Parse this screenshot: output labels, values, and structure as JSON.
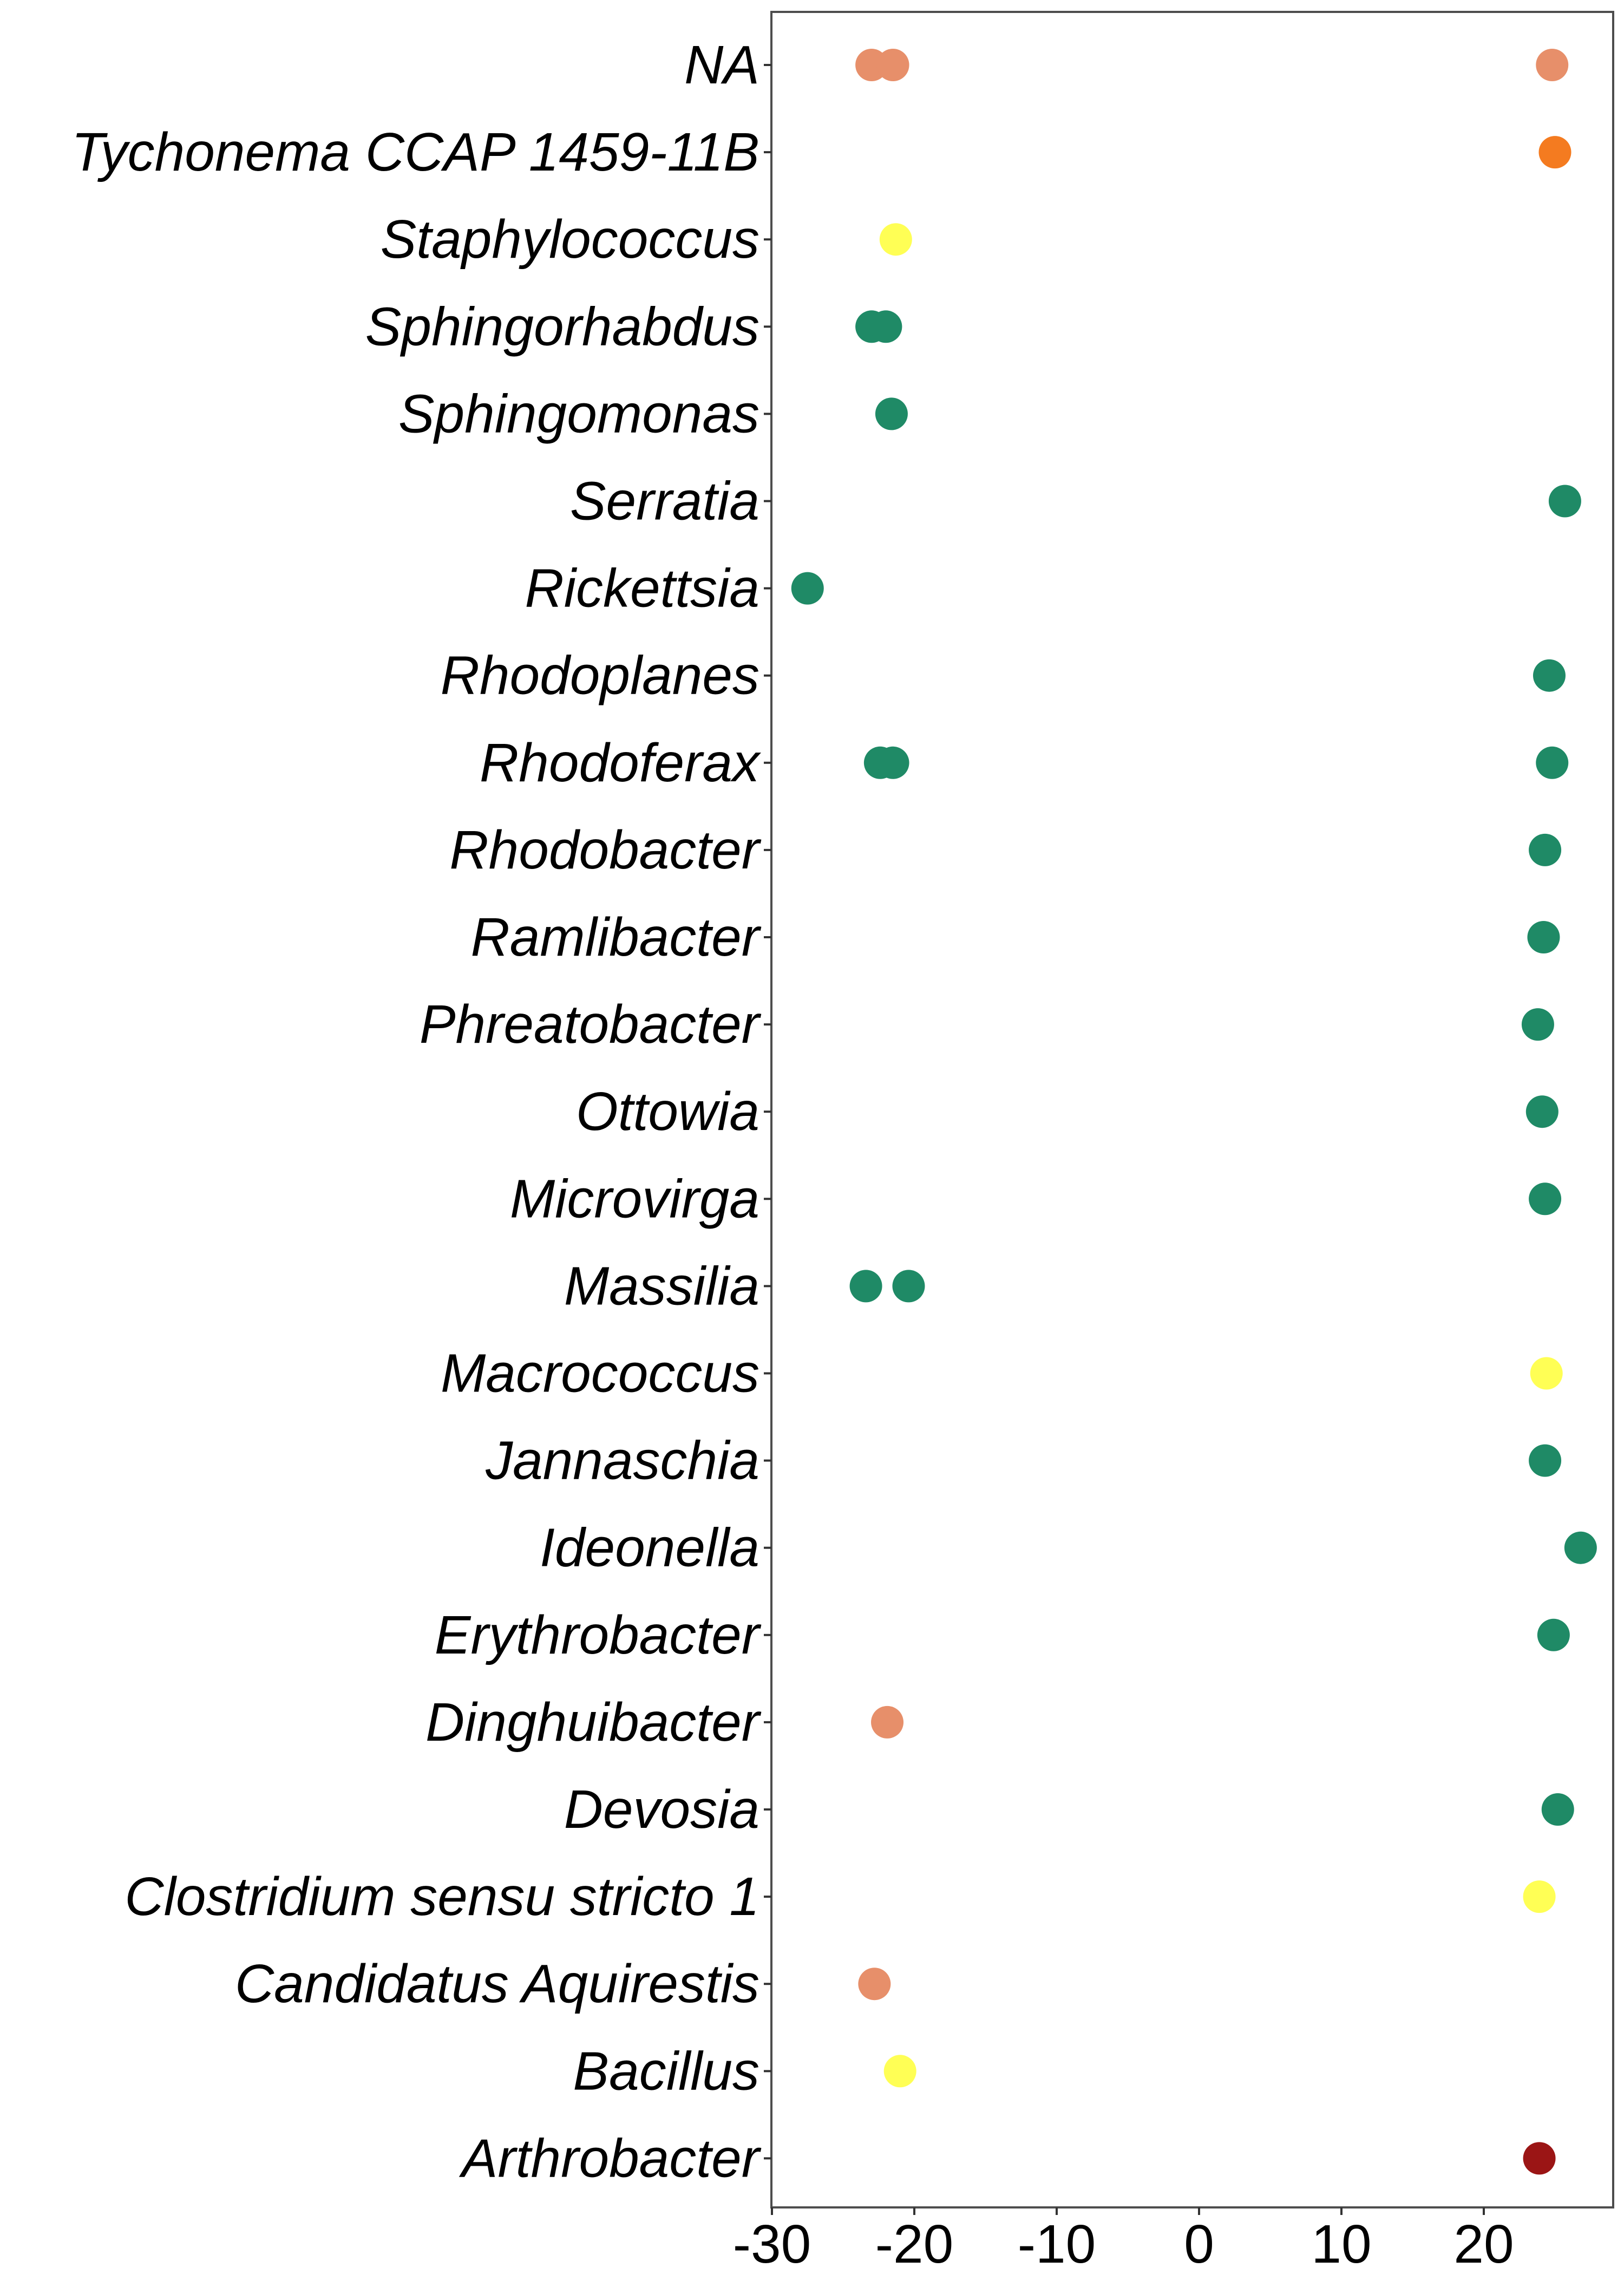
{
  "chart_data": {
    "type": "scatter",
    "title": "",
    "xlabel": "",
    "ylabel": "",
    "xlim": [
      -30.2,
      29
    ],
    "xticks": [
      -30,
      -20,
      -10,
      0,
      10,
      20
    ],
    "xtick_labels": [
      "-30",
      "-20",
      "-10",
      "0",
      "10",
      "20"
    ],
    "grid": false,
    "legend": "none",
    "categories": [
      "NA",
      "Tychonema CCAP 1459-11B",
      "Staphylococcus",
      "Sphingorhabdus",
      "Sphingomonas",
      "Serratia",
      "Rickettsia",
      "Rhodoplanes",
      "Rhodoferax",
      "Rhodobacter",
      "Ramlibacter",
      "Phreatobacter",
      "Ottowia",
      "Microvirga",
      "Massilia",
      "Macrococcus",
      "Jannaschia",
      "Ideonella",
      "Erythrobacter",
      "Dinghuibacter",
      "Devosia",
      "Clostridium sensu stricto 1",
      "Candidatus Aquirestis",
      "Bacillus",
      "Arthrobacter"
    ],
    "points": [
      {
        "y": "NA",
        "x": -23.0,
        "color": "#E78F6A"
      },
      {
        "y": "NA",
        "x": -21.5,
        "color": "#E78F6A"
      },
      {
        "y": "NA",
        "x": 24.8,
        "color": "#E78F6A"
      },
      {
        "y": "Tychonema CCAP 1459-11B",
        "x": 25.0,
        "color": "#F47B20"
      },
      {
        "y": "Staphylococcus",
        "x": -21.3,
        "color": "#FFFF55"
      },
      {
        "y": "Sphingorhabdus",
        "x": -23.0,
        "color": "#1F8A66"
      },
      {
        "y": "Sphingorhabdus",
        "x": -22.0,
        "color": "#1F8A66"
      },
      {
        "y": "Sphingomonas",
        "x": -21.6,
        "color": "#1F8A66"
      },
      {
        "y": "Serratia",
        "x": 25.7,
        "color": "#1F8A66"
      },
      {
        "y": "Rickettsia",
        "x": -27.5,
        "color": "#1F8A66"
      },
      {
        "y": "Rhodoplanes",
        "x": 24.6,
        "color": "#1F8A66"
      },
      {
        "y": "Rhodoferax",
        "x": -22.4,
        "color": "#1F8A66"
      },
      {
        "y": "Rhodoferax",
        "x": -21.5,
        "color": "#1F8A66"
      },
      {
        "y": "Rhodoferax",
        "x": 24.8,
        "color": "#1F8A66"
      },
      {
        "y": "Rhodobacter",
        "x": 24.3,
        "color": "#1F8A66"
      },
      {
        "y": "Ramlibacter",
        "x": 24.2,
        "color": "#1F8A66"
      },
      {
        "y": "Phreatobacter",
        "x": 23.8,
        "color": "#1F8A66"
      },
      {
        "y": "Ottowia",
        "x": 24.1,
        "color": "#1F8A66"
      },
      {
        "y": "Microvirga",
        "x": 24.3,
        "color": "#1F8A66"
      },
      {
        "y": "Massilia",
        "x": -23.4,
        "color": "#1F8A66"
      },
      {
        "y": "Massilia",
        "x": -20.4,
        "color": "#1F8A66"
      },
      {
        "y": "Macrococcus",
        "x": 24.4,
        "color": "#FFFF55"
      },
      {
        "y": "Jannaschia",
        "x": 24.3,
        "color": "#1F8A66"
      },
      {
        "y": "Ideonella",
        "x": 26.8,
        "color": "#1F8A66"
      },
      {
        "y": "Erythrobacter",
        "x": 24.9,
        "color": "#1F8A66"
      },
      {
        "y": "Dinghuibacter",
        "x": -21.9,
        "color": "#E78F6A"
      },
      {
        "y": "Devosia",
        "x": 25.2,
        "color": "#1F8A66"
      },
      {
        "y": "Clostridium sensu stricto 1",
        "x": 23.9,
        "color": "#FFFF55"
      },
      {
        "y": "Candidatus Aquirestis",
        "x": -22.8,
        "color": "#E78F6A"
      },
      {
        "y": "Bacillus",
        "x": -21.0,
        "color": "#FFFF55"
      },
      {
        "y": "Arthrobacter",
        "x": 23.9,
        "color": "#9B1515"
      }
    ]
  }
}
